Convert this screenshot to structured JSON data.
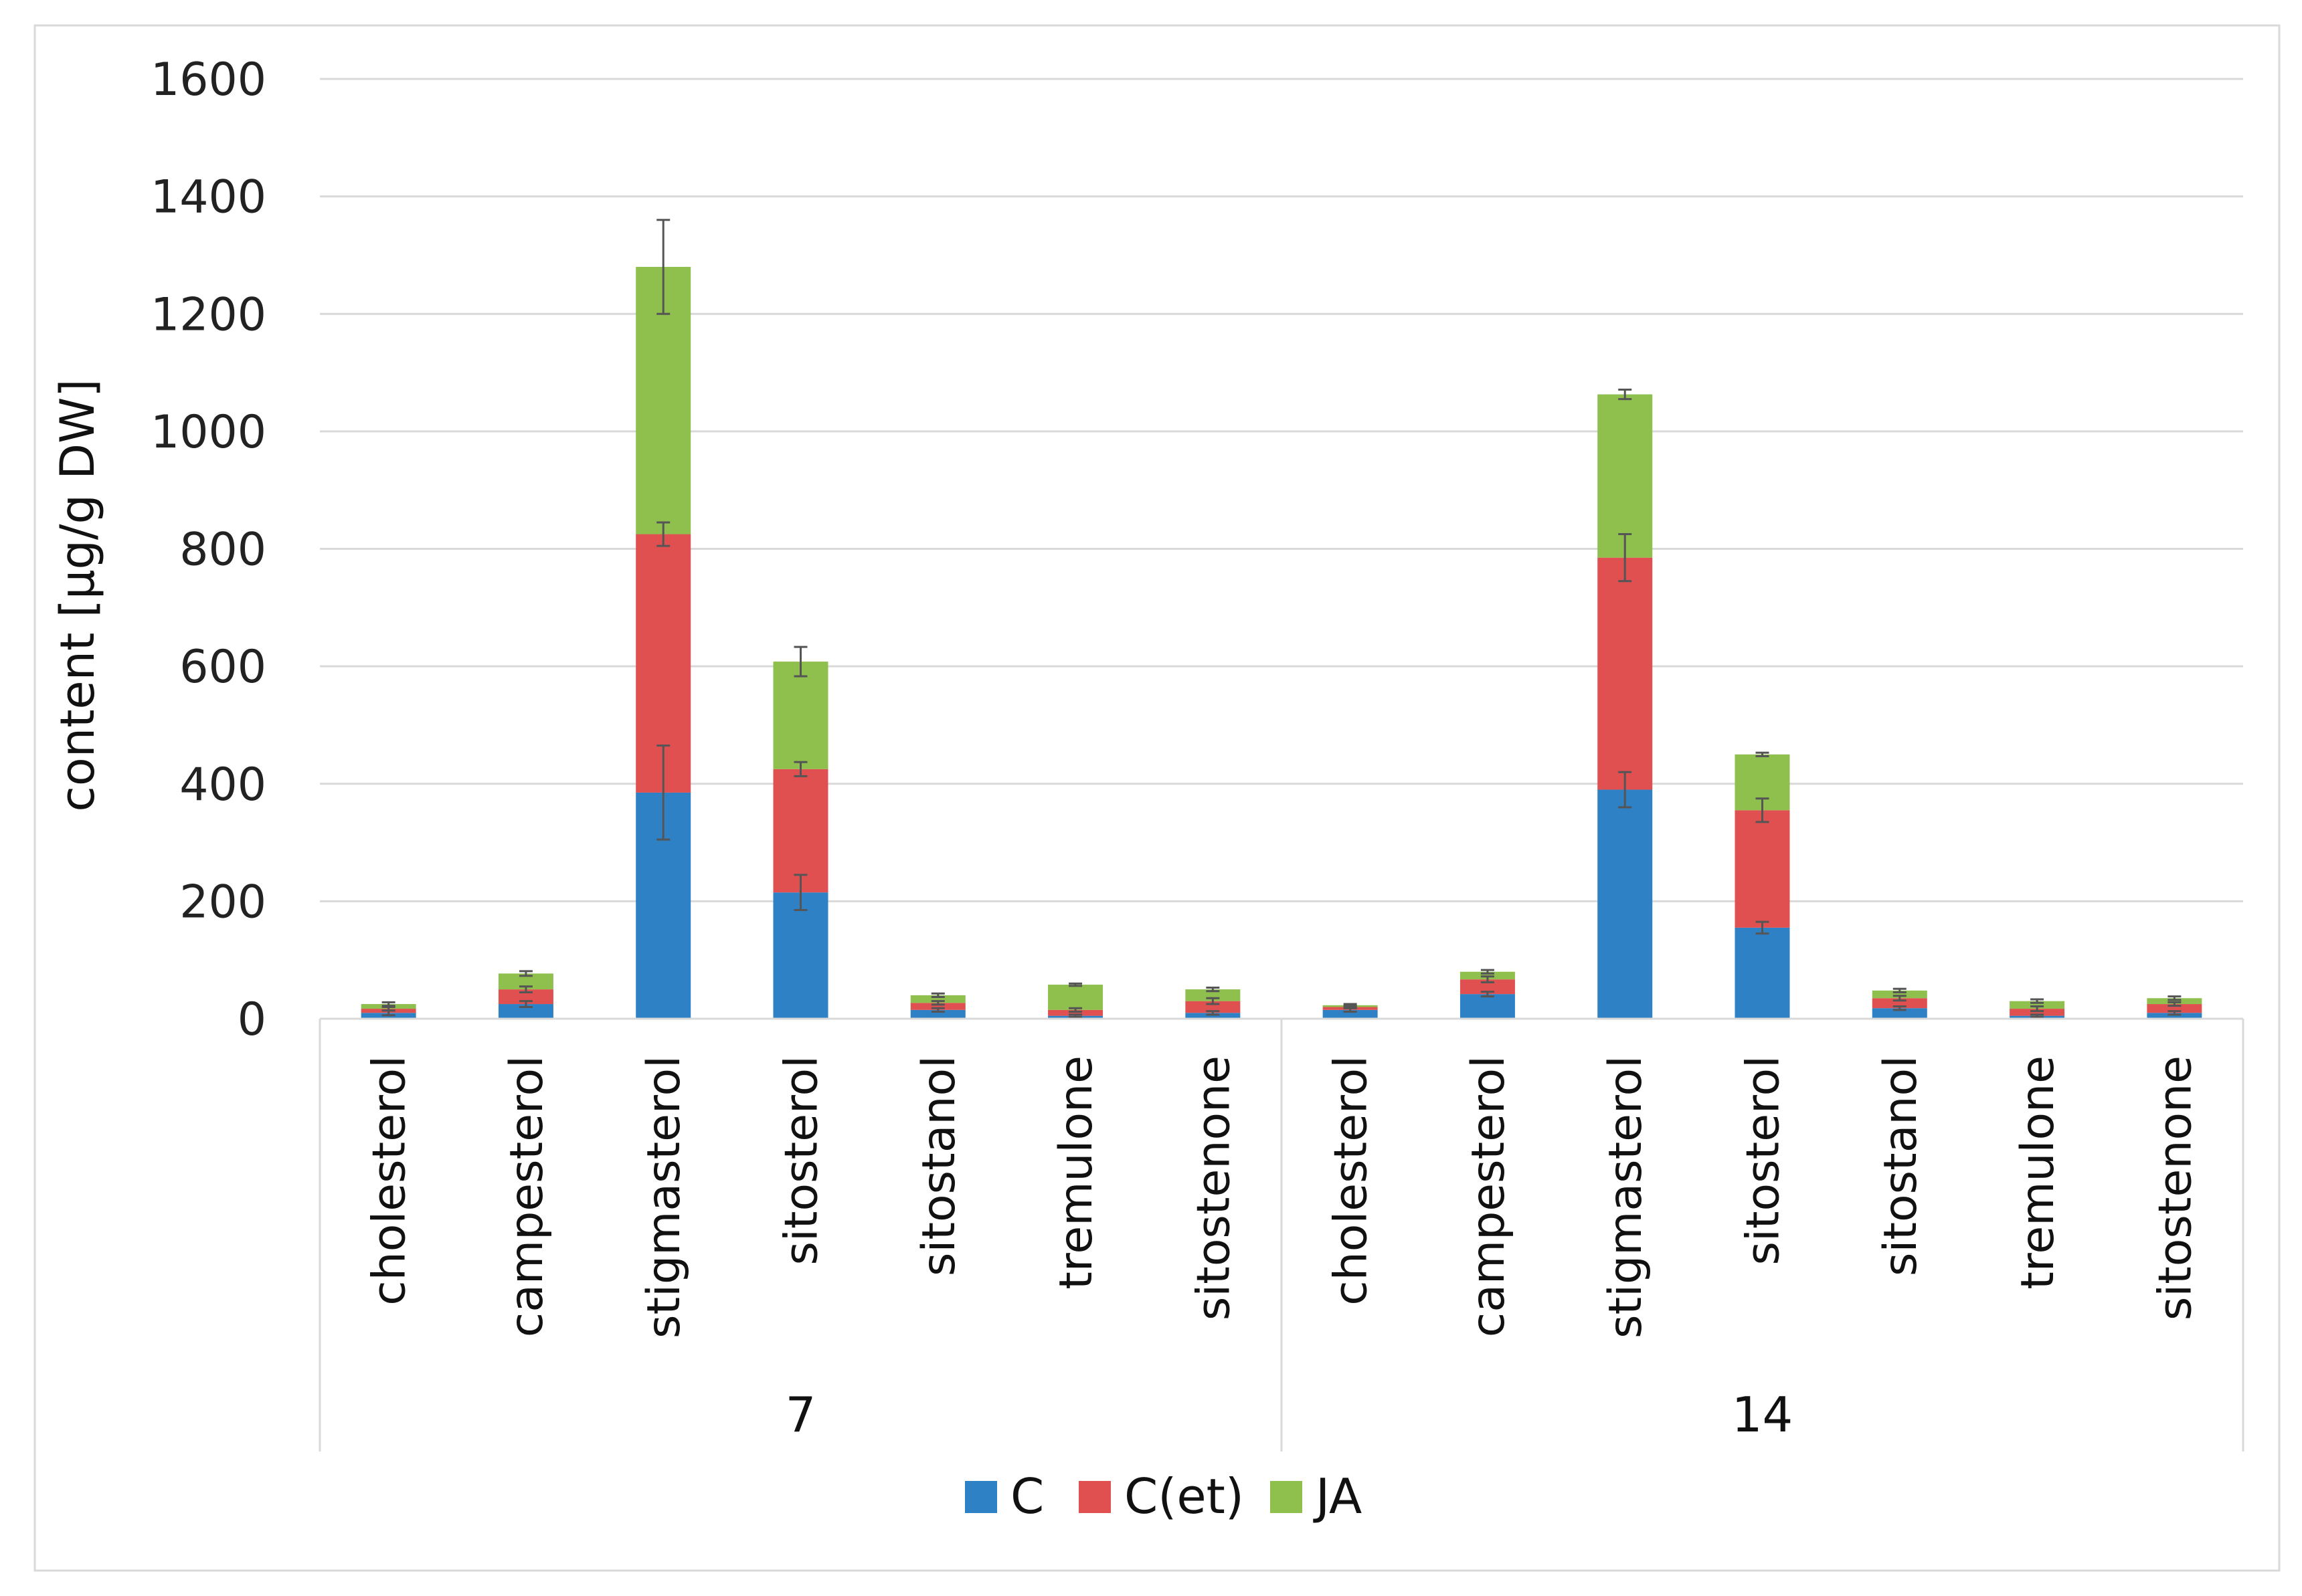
{
  "chart_data": {
    "type": "bar",
    "stacked": true,
    "title": "",
    "xlabel": "",
    "ylabel": "content [µg/g DW]",
    "ylim": [
      0,
      1600
    ],
    "yticks": [
      0,
      200,
      400,
      600,
      800,
      1000,
      1200,
      1400,
      1600
    ],
    "grid": true,
    "legend_position": "bottom",
    "groups": [
      {
        "label": "7",
        "categories": [
          "cholesterol",
          "campesterol",
          "stigmasterol",
          "sitosterol",
          "sitostanol",
          "tremulone",
          "sitostenone"
        ]
      },
      {
        "label": "14",
        "categories": [
          "cholesterol",
          "campesterol",
          "stigmasterol",
          "sitosterol",
          "sitostanol",
          "tremulone",
          "sitostenone"
        ]
      }
    ],
    "series": [
      {
        "name": "C",
        "color": "#2e81c4",
        "values": [
          10,
          25,
          385,
          215,
          15,
          5,
          10,
          15,
          42,
          390,
          155,
          18,
          5,
          10
        ],
        "errors": [
          4,
          5,
          80,
          30,
          3,
          2,
          3,
          3,
          4,
          30,
          10,
          3,
          2,
          3
        ]
      },
      {
        "name": "C(et)",
        "color": "#e05050",
        "values": [
          7,
          25,
          440,
          210,
          12,
          10,
          20,
          5,
          25,
          395,
          200,
          17,
          12,
          15
        ],
        "errors": [
          3,
          5,
          20,
          12,
          3,
          3,
          5,
          2,
          5,
          40,
          20,
          4,
          4,
          3
        ]
      },
      {
        "name": "JA",
        "color": "#8fbf4d",
        "values": [
          8,
          27,
          455,
          183,
          13,
          43,
          20,
          3,
          13,
          278,
          95,
          13,
          13,
          10
        ],
        "errors": [
          3,
          4,
          80,
          25,
          3,
          2,
          3,
          2,
          3,
          8,
          3,
          3,
          3,
          3
        ]
      }
    ]
  }
}
